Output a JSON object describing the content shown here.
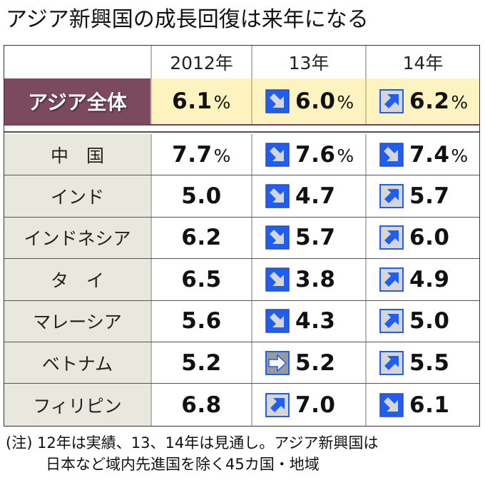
{
  "title": "アジア新興国の成長回復は来年になる",
  "columns": [
    "",
    "2012年",
    "13年",
    "14年"
  ],
  "percent_sign": "%",
  "rows": [
    {
      "label": "アジア全体",
      "highlight": true,
      "v2012": "6.1",
      "v13": "6.0",
      "d13": "down",
      "v14": "6.2",
      "d14": "up",
      "show_pct": true
    },
    {
      "label": "中　国",
      "v2012": "7.7",
      "v13": "7.6",
      "d13": "down",
      "v14": "7.4",
      "d14": "down",
      "show_pct": true
    },
    {
      "label": "インド",
      "v2012": "5.0",
      "v13": "4.7",
      "d13": "down",
      "v14": "5.7",
      "d14": "up"
    },
    {
      "label": "インドネシア",
      "v2012": "6.2",
      "v13": "5.7",
      "d13": "down",
      "v14": "6.0",
      "d14": "up"
    },
    {
      "label": "タ　イ",
      "v2012": "6.5",
      "v13": "3.8",
      "d13": "down",
      "v14": "4.9",
      "d14": "up"
    },
    {
      "label": "マレーシア",
      "v2012": "5.6",
      "v13": "4.3",
      "d13": "down",
      "v14": "5.0",
      "d14": "up"
    },
    {
      "label": "ベトナム",
      "v2012": "5.2",
      "v13": "5.2",
      "d13": "flat",
      "v14": "5.5",
      "d14": "up"
    },
    {
      "label": "フィリピン",
      "v2012": "6.8",
      "v13": "7.0",
      "d13": "up",
      "v14": "6.1",
      "d14": "down"
    }
  ],
  "note": {
    "line1": "(注) 12年は実績、13、14年は見通し。アジア新興国は",
    "line2": "日本など域内先進国を除く45カ国・地域"
  },
  "colors": {
    "highlight_label_bg": "#7c4a5e",
    "highlight_cell_bg": "#fdf3c0",
    "label_bg": "#e9e8de",
    "arrow_blue": "#1f5ef0",
    "arrow_gray": "#d6d6d6"
  },
  "icons": {
    "down": "arrow-down-right-icon",
    "up": "arrow-up-right-icon",
    "flat": "arrow-right-icon"
  },
  "chart_data": {
    "type": "table",
    "title": "アジア新興国の成長回復は来年になる",
    "unit": "%",
    "categories": [
      "アジア全体",
      "中国",
      "インド",
      "インドネシア",
      "タイ",
      "マレーシア",
      "ベトナム",
      "フィリピン"
    ],
    "series": [
      {
        "name": "2012年",
        "values": [
          6.1,
          7.7,
          5.0,
          6.2,
          6.5,
          5.6,
          5.2,
          6.8
        ]
      },
      {
        "name": "13年",
        "values": [
          6.0,
          7.6,
          4.7,
          5.7,
          3.8,
          4.3,
          5.2,
          7.0
        ],
        "trend": [
          "down",
          "down",
          "down",
          "down",
          "down",
          "down",
          "flat",
          "up"
        ]
      },
      {
        "name": "14年",
        "values": [
          6.2,
          7.4,
          5.7,
          6.0,
          4.9,
          5.0,
          5.5,
          6.1
        ],
        "trend": [
          "up",
          "down",
          "up",
          "up",
          "up",
          "up",
          "up",
          "down"
        ]
      }
    ],
    "annotations": [
      "(注) 12年は実績、13、14年は見通し。アジア新興国は日本など域内先進国を除く45カ国・地域"
    ]
  }
}
